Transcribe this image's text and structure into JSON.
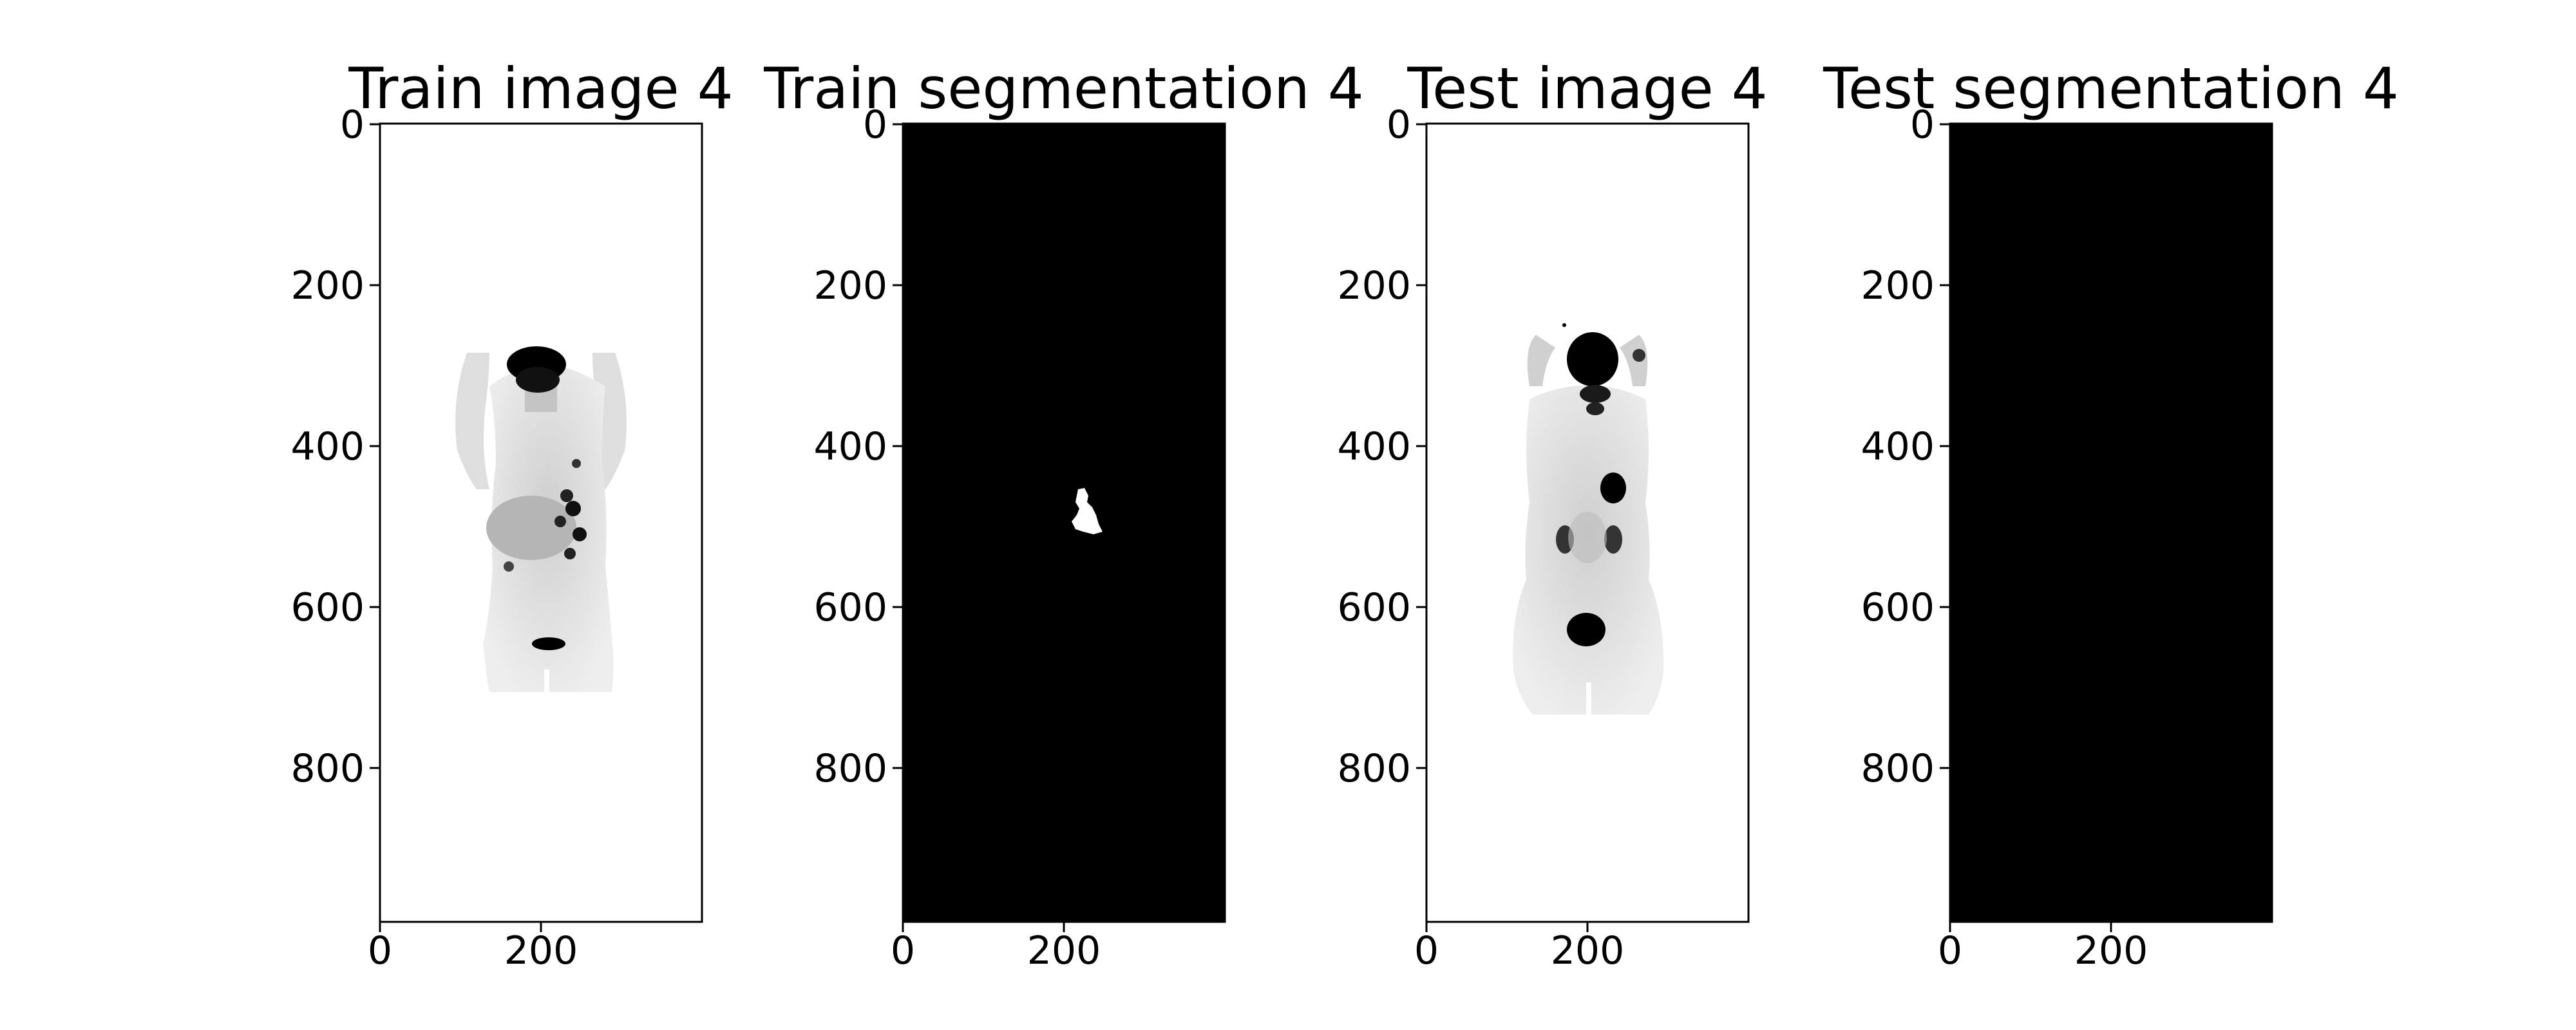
{
  "panels": [
    {
      "title": "Train image 4",
      "kind": "pet-mip-train",
      "bg": "#ffffff"
    },
    {
      "title": "Train segmentation 4",
      "kind": "segmentation-train",
      "bg": "#000000"
    },
    {
      "title": "Test image 4",
      "kind": "pet-mip-test",
      "bg": "#ffffff"
    },
    {
      "title": "Test segmentation 4",
      "kind": "segmentation-test",
      "bg": "#000000"
    }
  ],
  "yticks": [
    "0",
    "200",
    "400",
    "600",
    "800"
  ],
  "xticks": [
    "0",
    "200"
  ],
  "colors": {
    "foreground": "#000000",
    "background": "#ffffff",
    "mask": "#ffffff",
    "tissue": "#c8c8c8"
  }
}
